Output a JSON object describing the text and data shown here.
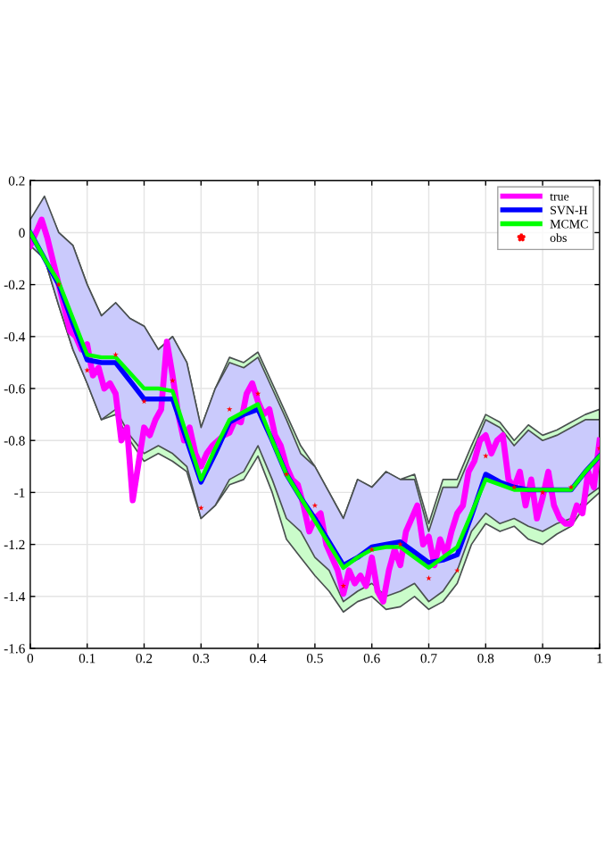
{
  "chart_data": {
    "type": "line",
    "xlim": [
      0,
      1
    ],
    "ylim": [
      -1.6,
      0.2
    ],
    "xticks": [
      0,
      0.1,
      0.2,
      0.3,
      0.4,
      0.5,
      0.6,
      0.7,
      0.8,
      0.9,
      1
    ],
    "yticks": [
      -1.6,
      -1.4,
      -1.2,
      -1,
      -0.8,
      -0.6,
      -0.4,
      -0.2,
      0,
      0.2
    ],
    "grid": true,
    "legend": "top right",
    "series": [
      {
        "name": "true",
        "color": "#ff00ff",
        "x": [
          0,
          0.01,
          0.02,
          0.03,
          0.05,
          0.07,
          0.08,
          0.09,
          0.1,
          0.11,
          0.12,
          0.13,
          0.14,
          0.15,
          0.16,
          0.17,
          0.18,
          0.2,
          0.21,
          0.22,
          0.23,
          0.24,
          0.25,
          0.26,
          0.27,
          0.28,
          0.29,
          0.3,
          0.31,
          0.32,
          0.33,
          0.34,
          0.35,
          0.36,
          0.37,
          0.38,
          0.39,
          0.4,
          0.41,
          0.42,
          0.43,
          0.44,
          0.45,
          0.46,
          0.47,
          0.48,
          0.49,
          0.5,
          0.51,
          0.52,
          0.53,
          0.54,
          0.55,
          0.56,
          0.57,
          0.58,
          0.59,
          0.6,
          0.61,
          0.62,
          0.63,
          0.64,
          0.65,
          0.66,
          0.67,
          0.68,
          0.69,
          0.7,
          0.71,
          0.72,
          0.73,
          0.74,
          0.75,
          0.76,
          0.77,
          0.78,
          0.79,
          0.8,
          0.81,
          0.82,
          0.83,
          0.84,
          0.85,
          0.86,
          0.87,
          0.88,
          0.89,
          0.9,
          0.91,
          0.92,
          0.93,
          0.94,
          0.95,
          0.96,
          0.97,
          0.98,
          0.99,
          1
        ],
        "values": [
          -0.05,
          0.0,
          0.05,
          -0.02,
          -0.2,
          -0.38,
          -0.4,
          -0.45,
          -0.43,
          -0.55,
          -0.52,
          -0.6,
          -0.58,
          -0.62,
          -0.8,
          -0.75,
          -1.03,
          -0.75,
          -0.78,
          -0.72,
          -0.68,
          -0.42,
          -0.55,
          -0.7,
          -0.8,
          -0.75,
          -0.85,
          -0.9,
          -0.85,
          -0.82,
          -0.8,
          -0.78,
          -0.77,
          -0.72,
          -0.73,
          -0.62,
          -0.58,
          -0.65,
          -0.7,
          -0.68,
          -0.78,
          -0.82,
          -0.9,
          -0.95,
          -0.97,
          -1.05,
          -1.15,
          -1.1,
          -1.08,
          -1.2,
          -1.25,
          -1.3,
          -1.39,
          -1.3,
          -1.35,
          -1.32,
          -1.36,
          -1.25,
          -1.38,
          -1.42,
          -1.3,
          -1.22,
          -1.28,
          -1.15,
          -1.1,
          -1.05,
          -1.2,
          -1.17,
          -1.28,
          -1.18,
          -1.24,
          -1.15,
          -1.08,
          -1.05,
          -0.92,
          -0.88,
          -0.8,
          -0.78,
          -0.85,
          -0.8,
          -0.78,
          -0.95,
          -0.98,
          -0.92,
          -1.05,
          -0.95,
          -1.1,
          -1.02,
          -0.92,
          -1.05,
          -1.1,
          -1.12,
          -1.12,
          -1.05,
          -1.08,
          -0.92,
          -0.98,
          -0.8
        ]
      },
      {
        "name": "SVN-H",
        "color": "#0000ff",
        "x": [
          0,
          0.025,
          0.05,
          0.075,
          0.1,
          0.125,
          0.15,
          0.175,
          0.2,
          0.225,
          0.25,
          0.275,
          0.3,
          0.325,
          0.35,
          0.375,
          0.4,
          0.425,
          0.45,
          0.475,
          0.5,
          0.525,
          0.55,
          0.575,
          0.6,
          0.625,
          0.65,
          0.675,
          0.7,
          0.725,
          0.75,
          0.775,
          0.8,
          0.825,
          0.85,
          0.875,
          0.9,
          0.925,
          0.95,
          0.975,
          1
        ],
        "values": [
          0,
          -0.1,
          -0.2,
          -0.35,
          -0.49,
          -0.5,
          -0.5,
          -0.57,
          -0.64,
          -0.64,
          -0.64,
          -0.8,
          -0.96,
          -0.85,
          -0.73,
          -0.7,
          -0.68,
          -0.8,
          -0.93,
          -1.02,
          -1.1,
          -1.19,
          -1.28,
          -1.25,
          -1.21,
          -1.2,
          -1.19,
          -1.23,
          -1.27,
          -1.26,
          -1.24,
          -1.09,
          -0.93,
          -0.96,
          -0.98,
          -0.99,
          -0.99,
          -0.99,
          -0.99,
          -0.92,
          -0.86
        ],
        "upper": [
          0.05,
          0.14,
          0.0,
          -0.05,
          -0.2,
          -0.32,
          -0.27,
          -0.33,
          -0.36,
          -0.45,
          -0.4,
          -0.5,
          -0.75,
          -0.6,
          -0.5,
          -0.52,
          -0.48,
          -0.6,
          -0.72,
          -0.85,
          -0.9,
          -1.0,
          -1.1,
          -0.95,
          -0.98,
          -0.92,
          -0.95,
          -0.95,
          -1.15,
          -0.98,
          -0.98,
          -0.85,
          -0.72,
          -0.75,
          -0.82,
          -0.76,
          -0.8,
          -0.78,
          -0.75,
          -0.72,
          -0.72
        ],
        "lower": [
          -0.05,
          -0.1,
          -0.28,
          -0.45,
          -0.58,
          -0.72,
          -0.68,
          -0.78,
          -0.85,
          -0.82,
          -0.85,
          -0.9,
          -1.1,
          -1.05,
          -0.95,
          -0.92,
          -0.82,
          -0.95,
          -1.1,
          -1.15,
          -1.25,
          -1.3,
          -1.42,
          -1.38,
          -1.35,
          -1.4,
          -1.38,
          -1.35,
          -1.42,
          -1.38,
          -1.3,
          -1.15,
          -1.08,
          -1.12,
          -1.1,
          -1.13,
          -1.15,
          -1.12,
          -1.1,
          -1.02,
          -0.98
        ]
      },
      {
        "name": "MCMC",
        "color": "#00ff00",
        "x": [
          0,
          0.025,
          0.05,
          0.075,
          0.1,
          0.125,
          0.15,
          0.175,
          0.2,
          0.225,
          0.25,
          0.275,
          0.3,
          0.325,
          0.35,
          0.375,
          0.4,
          0.425,
          0.45,
          0.475,
          0.5,
          0.525,
          0.55,
          0.575,
          0.6,
          0.625,
          0.65,
          0.675,
          0.7,
          0.725,
          0.75,
          0.775,
          0.8,
          0.825,
          0.85,
          0.875,
          0.9,
          0.925,
          0.95,
          0.975,
          1
        ],
        "values": [
          0,
          -0.1,
          -0.19,
          -0.33,
          -0.47,
          -0.48,
          -0.48,
          -0.54,
          -0.6,
          -0.6,
          -0.61,
          -0.78,
          -0.95,
          -0.83,
          -0.72,
          -0.69,
          -0.66,
          -0.8,
          -0.93,
          -1.02,
          -1.11,
          -1.2,
          -1.29,
          -1.25,
          -1.22,
          -1.21,
          -1.21,
          -1.25,
          -1.29,
          -1.25,
          -1.21,
          -1.08,
          -0.95,
          -0.97,
          -0.99,
          -0.99,
          -0.99,
          -0.99,
          -0.99,
          -0.92,
          -0.86
        ],
        "upper": [
          0.05,
          0.13,
          0.0,
          -0.05,
          -0.2,
          -0.32,
          -0.27,
          -0.33,
          -0.36,
          -0.45,
          -0.4,
          -0.5,
          -0.75,
          -0.6,
          -0.48,
          -0.5,
          -0.46,
          -0.58,
          -0.7,
          -0.82,
          -0.9,
          -1.0,
          -1.1,
          -0.95,
          -0.98,
          -0.92,
          -0.95,
          -0.93,
          -1.12,
          -0.95,
          -0.95,
          -0.82,
          -0.7,
          -0.73,
          -0.8,
          -0.74,
          -0.78,
          -0.76,
          -0.73,
          -0.7,
          -0.68
        ],
        "lower": [
          -0.05,
          -0.1,
          -0.28,
          -0.45,
          -0.58,
          -0.72,
          -0.7,
          -0.8,
          -0.88,
          -0.85,
          -0.88,
          -0.92,
          -1.1,
          -1.05,
          -0.97,
          -0.95,
          -0.86,
          -1.0,
          -1.18,
          -1.25,
          -1.32,
          -1.38,
          -1.46,
          -1.42,
          -1.4,
          -1.45,
          -1.44,
          -1.4,
          -1.45,
          -1.42,
          -1.35,
          -1.2,
          -1.12,
          -1.15,
          -1.13,
          -1.18,
          -1.2,
          -1.16,
          -1.13,
          -1.05,
          -1.0
        ]
      },
      {
        "name": "obs",
        "type": "scatter",
        "color": "#ff0000",
        "marker": "star",
        "x": [
          0.05,
          0.1,
          0.15,
          0.2,
          0.25,
          0.3,
          0.35,
          0.4,
          0.45,
          0.5,
          0.55,
          0.6,
          0.65,
          0.7,
          0.75,
          0.8,
          0.85,
          0.9,
          0.95,
          1
        ],
        "values": [
          -0.2,
          -0.53,
          -0.47,
          -0.65,
          -0.57,
          -1.06,
          -0.68,
          -0.62,
          -0.93,
          -1.05,
          -1.36,
          -1.22,
          -1.2,
          -1.33,
          -1.3,
          -0.86,
          -0.98,
          -1.0,
          -0.98,
          -0.83
        ]
      }
    ]
  }
}
